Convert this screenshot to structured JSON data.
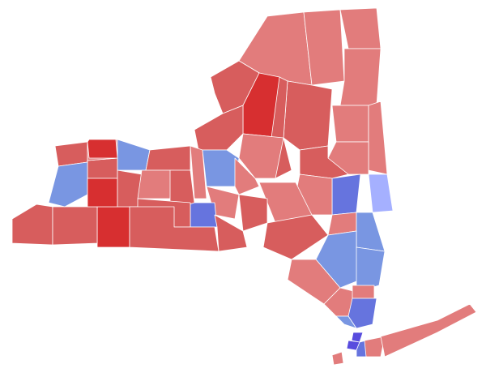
{
  "palette": {
    "light_red": "#e27c7c",
    "medium_red": "#d75d5d",
    "dark_red": "#d72f30",
    "pale_blue": "#a5b0ff",
    "light_blue": "#7996e2",
    "medium_blue": "#6674de",
    "dark_blue": "#584cde"
  },
  "regions": [
    "light_red",
    "light_red",
    "light_red",
    "light_red",
    "medium_red",
    "dark_red",
    "medium_red",
    "light_red",
    "light_red",
    "light_red",
    "medium_red",
    "medium_red",
    "light_red",
    "medium_red",
    "pale_blue",
    "medium_blue",
    "light_red",
    "light_red",
    "light_blue",
    "light_red",
    "light_red",
    "medium_red",
    "light_red",
    "medium_blue",
    "medium_red",
    "medium_red",
    "light_red",
    "light_blue",
    "light_blue",
    "light_red",
    "light_red",
    "light_blue",
    "light_red",
    "medium_blue",
    "light_blue",
    "dark_blue",
    "dark_blue",
    "medium_blue",
    "light_red",
    "light_red",
    "light_red",
    "medium_red",
    "medium_red",
    "dark_red",
    "medium_red",
    "medium_red",
    "light_blue",
    "light_red",
    "dark_red",
    "medium_red",
    "dark_red",
    "light_blue",
    "medium_red",
    "light_red",
    "medium_red",
    "medium_red",
    "medium_red"
  ]
}
